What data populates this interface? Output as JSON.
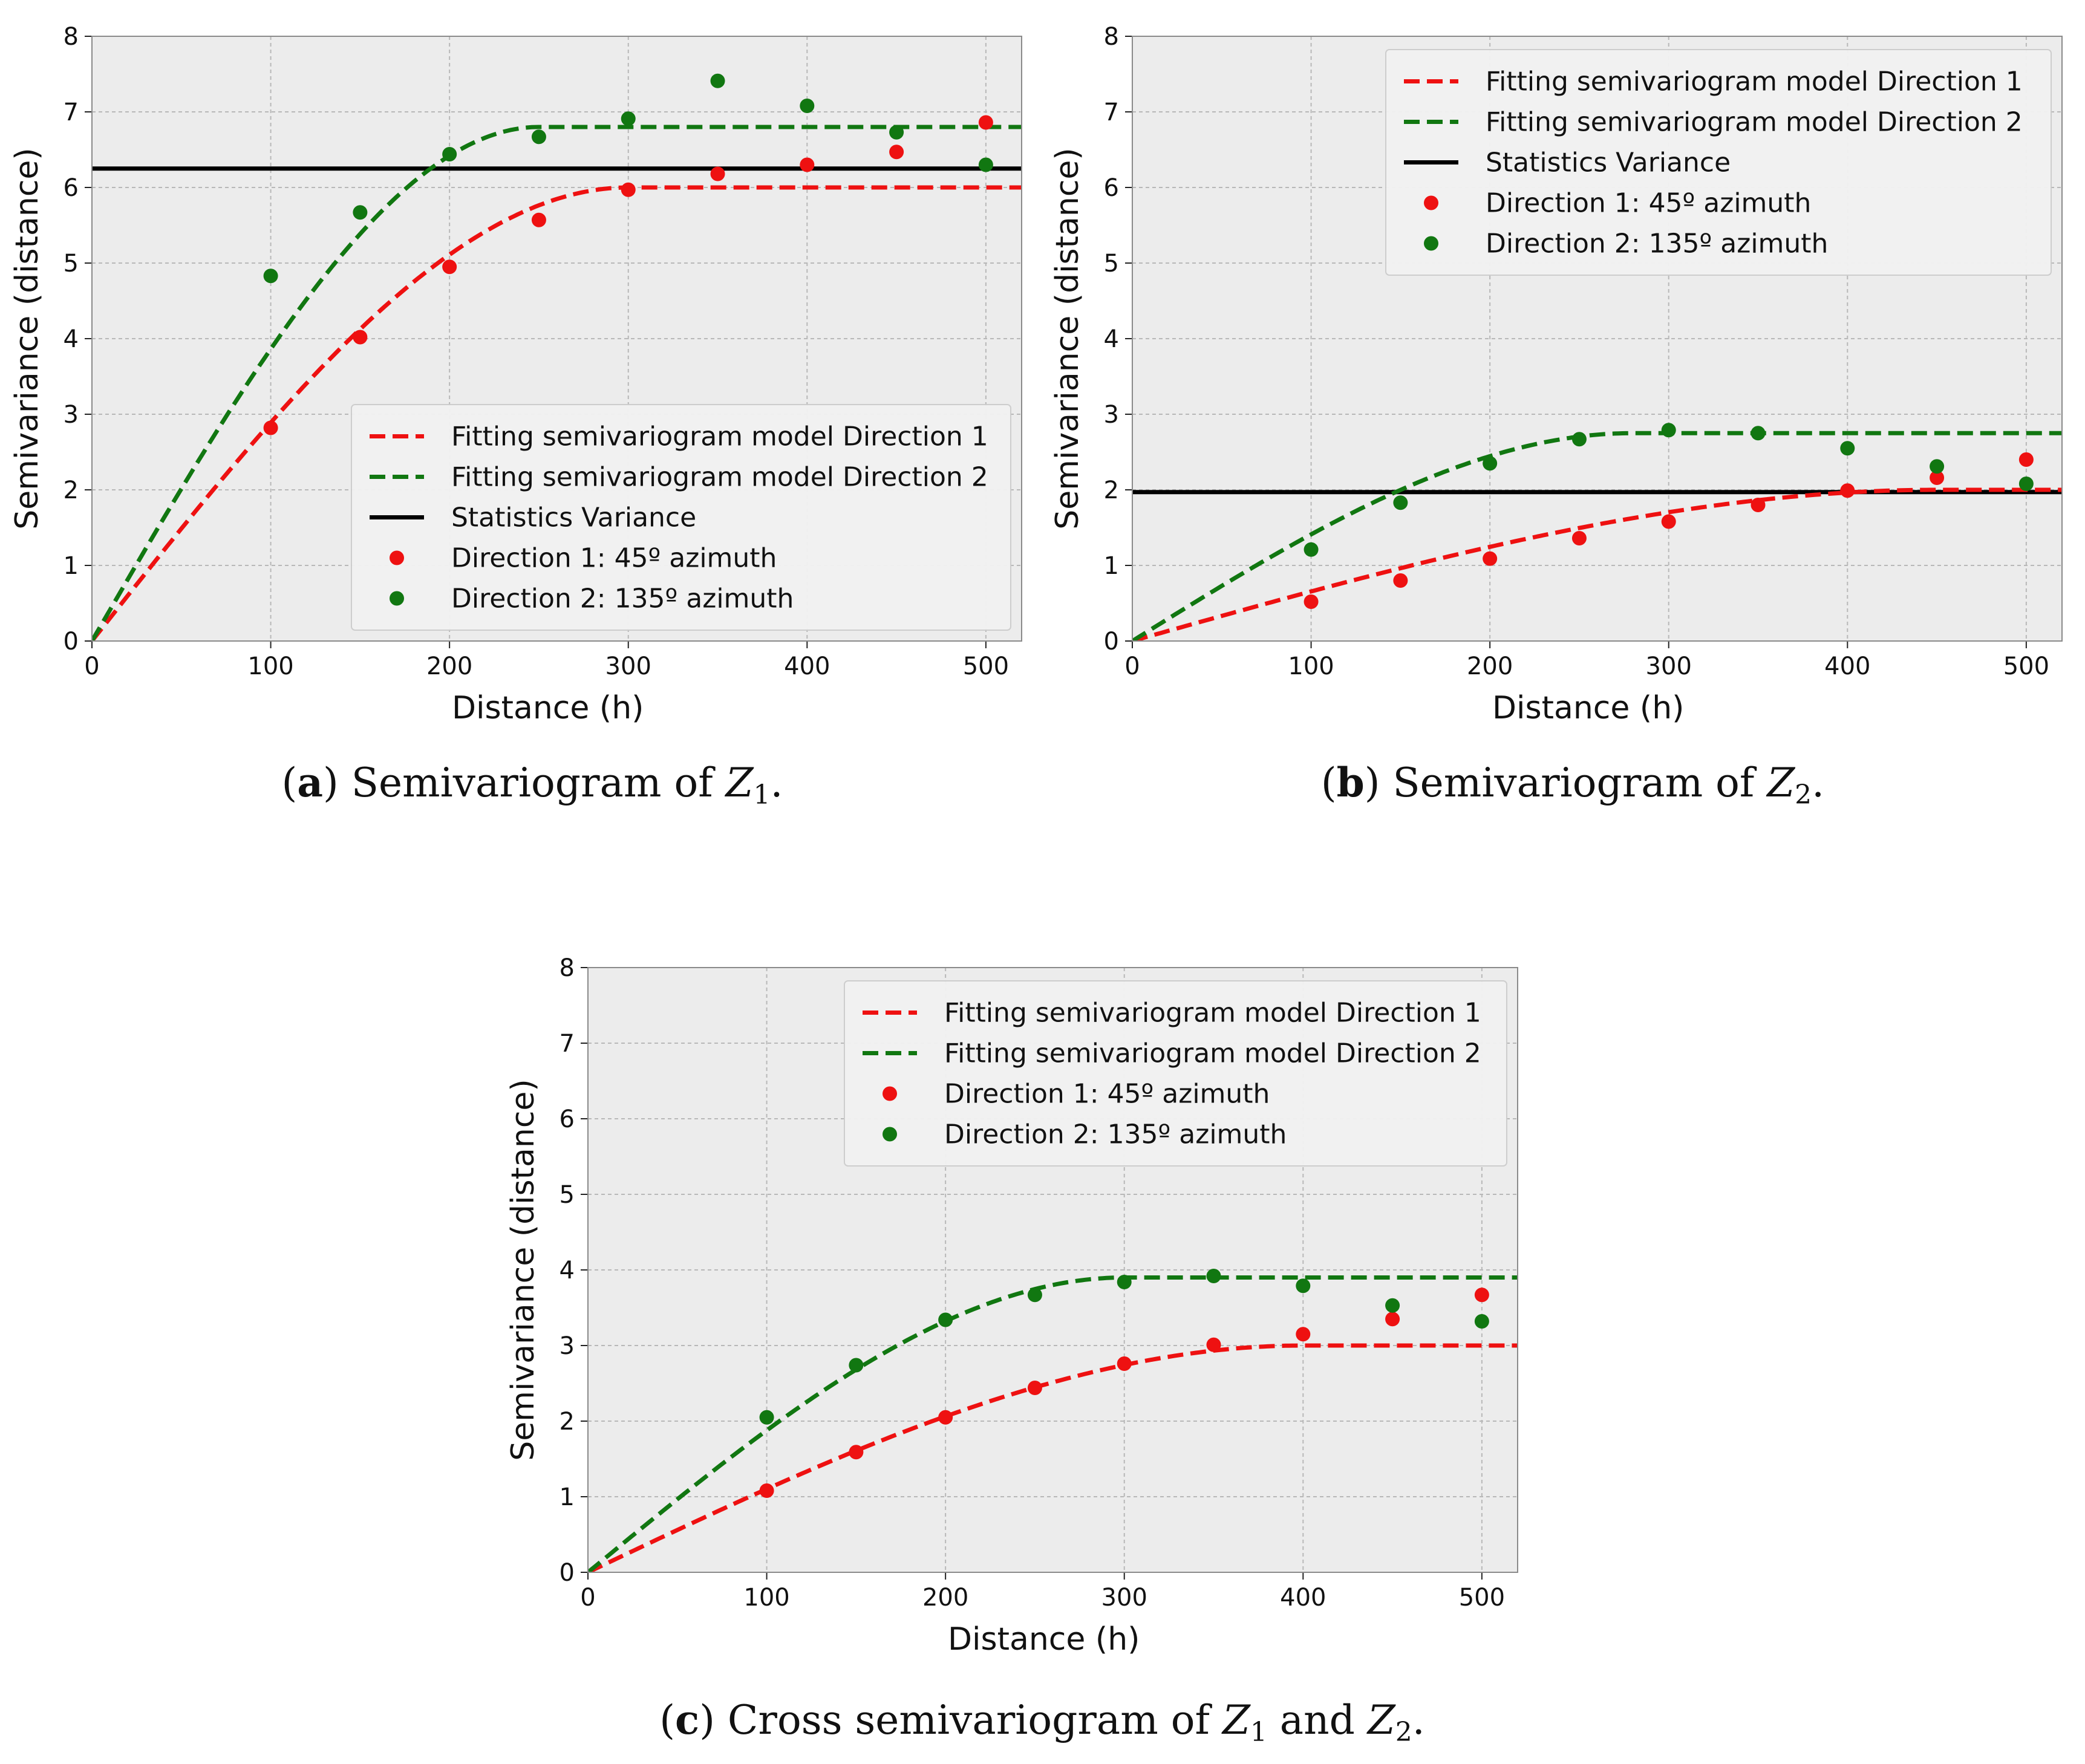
{
  "figure": {
    "captions": [
      {
        "tag": "a",
        "text_before": " Semivariogram of ",
        "var1": "Z",
        "sub1": "1",
        "text_after": "."
      },
      {
        "tag": "b",
        "text_before": " Semivariogram of ",
        "var1": "Z",
        "sub1": "2",
        "text_after": "."
      },
      {
        "tag": "c",
        "text_before": " Cross semivariogram of ",
        "var1": "Z",
        "sub1": "1",
        "middle": " and ",
        "var2": "Z",
        "sub2": "2",
        "text_after": "."
      }
    ]
  },
  "colors": {
    "direction1": "#ee1111",
    "direction2": "#117711",
    "variance": "#000000",
    "plot_bg": "#ececec",
    "grid": "#b8b8b8"
  },
  "chart_data": [
    {
      "id": "a",
      "type": "scatter",
      "title": "",
      "xlabel": "Distance (h)",
      "ylabel": "Semivariance (distance)",
      "xlim": [
        0,
        520
      ],
      "ylim": [
        0,
        8
      ],
      "xticks": [
        0,
        100,
        200,
        300,
        400,
        500
      ],
      "yticks": [
        0,
        1,
        2,
        3,
        4,
        5,
        6,
        7,
        8
      ],
      "grid": true,
      "legend_position": "lower-right",
      "models": [
        {
          "name": "Fitting semivariogram model Direction 1",
          "kind": "spherical",
          "sill": 6.0,
          "range": 300,
          "color_key": "direction1"
        },
        {
          "name": "Fitting semivariogram model Direction 2",
          "kind": "spherical",
          "sill": 6.8,
          "range": 250,
          "color_key": "direction2"
        }
      ],
      "hline": {
        "name": "Statistics Variance",
        "value": 6.25
      },
      "series": [
        {
          "name": "Direction 1: 45º azimuth",
          "color_key": "direction1",
          "x": [
            100,
            150,
            200,
            250,
            300,
            350,
            400,
            450,
            500
          ],
          "y": [
            2.82,
            4.02,
            4.95,
            5.57,
            5.97,
            6.18,
            6.3,
            6.47,
            6.86
          ]
        },
        {
          "name": "Direction 2: 135º azimuth",
          "color_key": "direction2",
          "x": [
            100,
            150,
            200,
            250,
            300,
            350,
            400,
            450,
            500
          ],
          "y": [
            4.83,
            5.67,
            6.44,
            6.67,
            6.91,
            7.41,
            7.08,
            6.73,
            6.3
          ]
        }
      ]
    },
    {
      "id": "b",
      "type": "scatter",
      "title": "",
      "xlabel": "Distance (h)",
      "ylabel": "Semivariance (distance)",
      "xlim": [
        0,
        520
      ],
      "ylim": [
        0,
        8
      ],
      "xticks": [
        0,
        100,
        200,
        300,
        400,
        500
      ],
      "yticks": [
        0,
        1,
        2,
        3,
        4,
        5,
        6,
        7,
        8
      ],
      "grid": true,
      "legend_position": "upper-right",
      "models": [
        {
          "name": "Fitting semivariogram model Direction 1",
          "kind": "spherical",
          "sill": 2.0,
          "range": 450,
          "color_key": "direction1"
        },
        {
          "name": "Fitting semivariogram model Direction 2",
          "kind": "spherical",
          "sill": 2.75,
          "range": 280,
          "color_key": "direction2"
        }
      ],
      "hline": {
        "name": "Statistics Variance",
        "value": 1.97
      },
      "series": [
        {
          "name": "Direction 1: 45º azimuth",
          "color_key": "direction1",
          "x": [
            100,
            150,
            200,
            250,
            300,
            350,
            400,
            450,
            500
          ],
          "y": [
            0.52,
            0.8,
            1.09,
            1.36,
            1.58,
            1.8,
            1.99,
            2.16,
            2.4
          ]
        },
        {
          "name": "Direction 2: 135º azimuth",
          "color_key": "direction2",
          "x": [
            100,
            150,
            200,
            250,
            300,
            350,
            400,
            450,
            500
          ],
          "y": [
            1.21,
            1.83,
            2.35,
            2.67,
            2.79,
            2.75,
            2.55,
            2.31,
            2.08
          ]
        }
      ]
    },
    {
      "id": "c",
      "type": "scatter",
      "title": "",
      "xlabel": "Distance (h)",
      "ylabel": "Semivariance (distance)",
      "xlim": [
        0,
        520
      ],
      "ylim": [
        0,
        8
      ],
      "xticks": [
        0,
        100,
        200,
        300,
        400,
        500
      ],
      "yticks": [
        0,
        1,
        2,
        3,
        4,
        5,
        6,
        7,
        8
      ],
      "grid": true,
      "legend_position": "upper-right",
      "models": [
        {
          "name": "Fitting semivariogram model Direction 1",
          "kind": "spherical",
          "sill": 3.0,
          "range": 400,
          "color_key": "direction1"
        },
        {
          "name": "Fitting semivariogram model Direction 2",
          "kind": "spherical",
          "sill": 3.9,
          "range": 300,
          "color_key": "direction2"
        }
      ],
      "hline": null,
      "series": [
        {
          "name": "Direction 1: 45º azimuth",
          "color_key": "direction1",
          "x": [
            100,
            150,
            200,
            250,
            300,
            350,
            400,
            450,
            500
          ],
          "y": [
            1.08,
            1.59,
            2.05,
            2.44,
            2.76,
            3.01,
            3.15,
            3.35,
            3.67
          ]
        },
        {
          "name": "Direction 2: 135º azimuth",
          "color_key": "direction2",
          "x": [
            100,
            150,
            200,
            250,
            300,
            350,
            400,
            450,
            500
          ],
          "y": [
            2.05,
            2.74,
            3.34,
            3.67,
            3.84,
            3.92,
            3.79,
            3.53,
            3.32
          ]
        }
      ]
    }
  ]
}
